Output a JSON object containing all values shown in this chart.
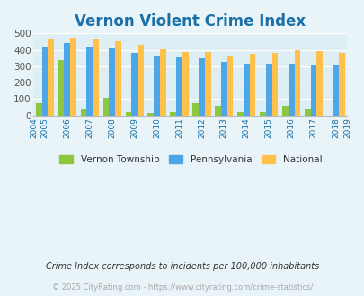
{
  "title": "Vernon Violent Crime Index",
  "all_years": [
    2004,
    2005,
    2006,
    2007,
    2008,
    2009,
    2010,
    2011,
    2012,
    2013,
    2014,
    2015,
    2016,
    2017,
    2018,
    2019
  ],
  "plot_years": [
    2005,
    2006,
    2007,
    2008,
    2009,
    2010,
    2011,
    2012,
    2013,
    2014,
    2015,
    2016,
    2017,
    2018
  ],
  "vernon": [
    76,
    335,
    40,
    110,
    22,
    17,
    18,
    73,
    57,
    22,
    22,
    57,
    40,
    0
  ],
  "pennsylvania": [
    422,
    440,
    417,
    407,
    379,
    366,
    353,
    348,
    328,
    313,
    313,
    313,
    310,
    304
  ],
  "national": [
    469,
    474,
    467,
    455,
    432,
    405,
    387,
    387,
    367,
    376,
    383,
    397,
    394,
    380
  ],
  "bar_color_vernon": "#8dc63f",
  "bar_color_pennsylvania": "#4da6e8",
  "bar_color_national": "#ffc04c",
  "bg_color": "#e8f4f8",
  "plot_bg_color": "#deeef5",
  "ylim": [
    0,
    500
  ],
  "yticks": [
    0,
    100,
    200,
    300,
    400,
    500
  ],
  "legend_labels": [
    "Vernon Township",
    "Pennsylvania",
    "National"
  ],
  "footnote1": "Crime Index corresponds to incidents per 100,000 inhabitants",
  "footnote2": "© 2025 CityRating.com - https://www.cityrating.com/crime-statistics/",
  "title_color": "#1a6fa6",
  "tick_color": "#1a6fa6",
  "footnote1_color": "#333333",
  "footnote2_color": "#aaaaaa"
}
